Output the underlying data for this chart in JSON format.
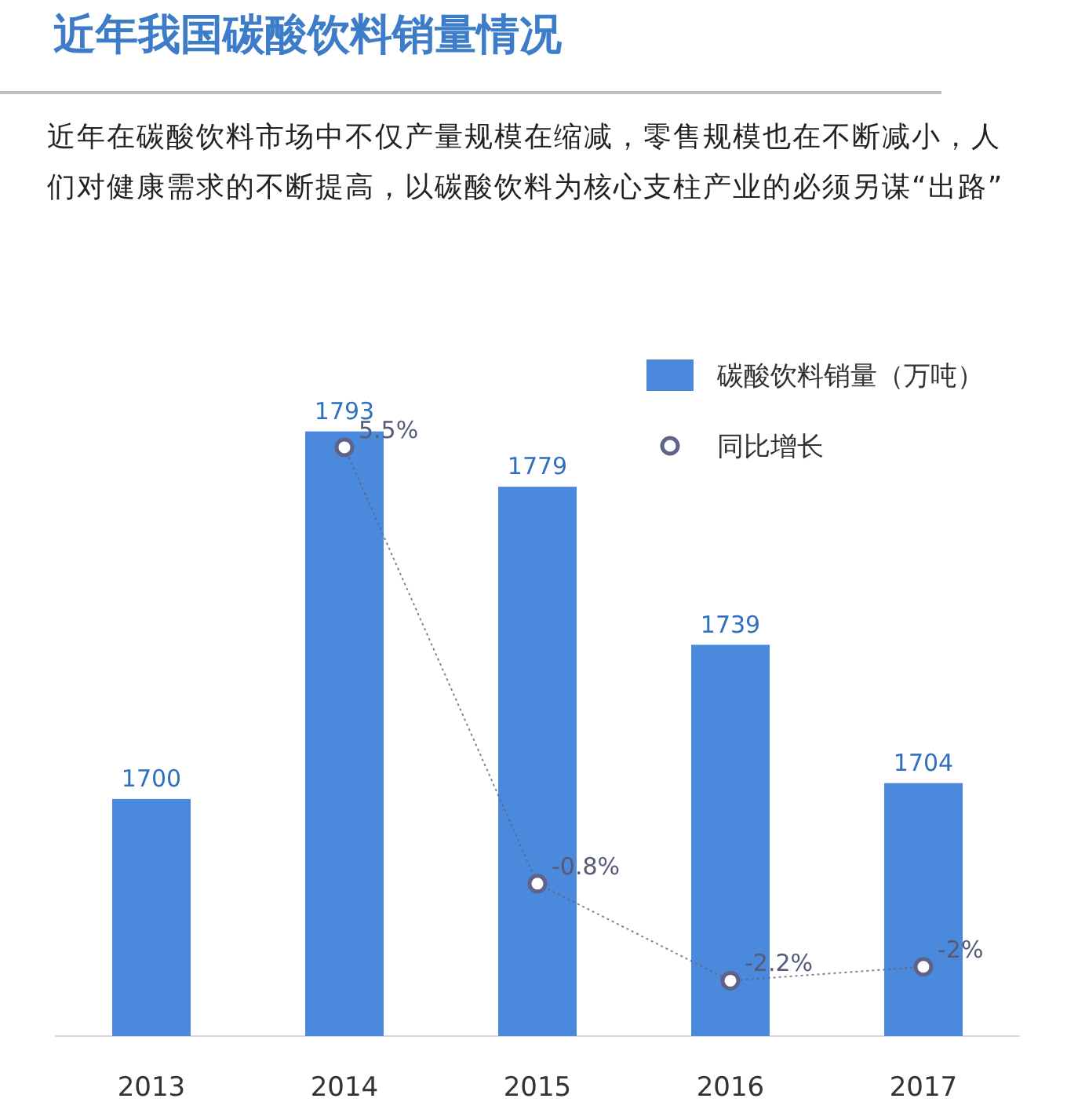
{
  "chart_data": {
    "type": "bar",
    "title": "近年我国碳酸饮料销量情况",
    "subtitle": "近年在碳酸饮料市场中不仅产量规模在缩减，零售规模也在不断减小，人们对健康需求的不断提高，以碳酸饮料为核心支柱产业的必须另谋“出路”",
    "categories": [
      "2013",
      "2014",
      "2015",
      "2016",
      "2017"
    ],
    "series": [
      {
        "name": "碳酸饮料销量（万吨）",
        "color": "#4a89dc",
        "values": [
          1700,
          1793,
          1779,
          1739,
          1704
        ]
      },
      {
        "name": "同比增长",
        "type": "line",
        "axis": "y2",
        "color": "#5f6387",
        "values": [
          null,
          5.5,
          -0.8,
          -2.2,
          -2
        ],
        "value_labels": [
          null,
          "5.5%",
          "-0.8%",
          "-2.2%",
          "-2%"
        ]
      }
    ],
    "data_labels": true,
    "ylim": [
      1640,
      1810
    ],
    "y2lim": [
      -3,
      6.7
    ],
    "tick_labels": "x",
    "legend": "top right",
    "marker": "circle",
    "line_style": "dotted"
  }
}
